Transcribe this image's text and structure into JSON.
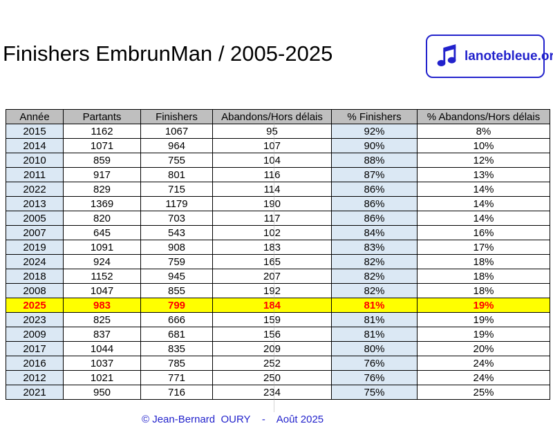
{
  "page": {
    "title": "Finishers EmbrunMan / 2005-2025",
    "footer_credit": "© Jean-Bernard  OURY    -    Août 2025"
  },
  "logo": {
    "icon": "music-note-icon",
    "text": "lanotebleue.org"
  },
  "colors": {
    "accent": "#2222CC",
    "header_bg": "#BFBFBF",
    "band_blue": "#DBE8F4",
    "highlight_bg": "#FFFF00",
    "highlight_text": "#FF0000",
    "border": "#000000",
    "page_bg": "#FFFFFF"
  },
  "table": {
    "columns": [
      "Année",
      "Partants",
      "Finishers",
      "Abandons/Hors délais",
      "% Finishers",
      "% Abandons/Hors délais"
    ],
    "rows": [
      {
        "annee": "2015",
        "partants": "1162",
        "finishers": "1067",
        "abandons": "95",
        "pct_finishers": "92%",
        "pct_abandons": "8%",
        "highlight": false
      },
      {
        "annee": "2014",
        "partants": "1071",
        "finishers": "964",
        "abandons": "107",
        "pct_finishers": "90%",
        "pct_abandons": "10%",
        "highlight": false
      },
      {
        "annee": "2010",
        "partants": "859",
        "finishers": "755",
        "abandons": "104",
        "pct_finishers": "88%",
        "pct_abandons": "12%",
        "highlight": false
      },
      {
        "annee": "2011",
        "partants": "917",
        "finishers": "801",
        "abandons": "116",
        "pct_finishers": "87%",
        "pct_abandons": "13%",
        "highlight": false
      },
      {
        "annee": "2022",
        "partants": "829",
        "finishers": "715",
        "abandons": "114",
        "pct_finishers": "86%",
        "pct_abandons": "14%",
        "highlight": false
      },
      {
        "annee": "2013",
        "partants": "1369",
        "finishers": "1179",
        "abandons": "190",
        "pct_finishers": "86%",
        "pct_abandons": "14%",
        "highlight": false
      },
      {
        "annee": "2005",
        "partants": "820",
        "finishers": "703",
        "abandons": "117",
        "pct_finishers": "86%",
        "pct_abandons": "14%",
        "highlight": false
      },
      {
        "annee": "2007",
        "partants": "645",
        "finishers": "543",
        "abandons": "102",
        "pct_finishers": "84%",
        "pct_abandons": "16%",
        "highlight": false
      },
      {
        "annee": "2019",
        "partants": "1091",
        "finishers": "908",
        "abandons": "183",
        "pct_finishers": "83%",
        "pct_abandons": "17%",
        "highlight": false
      },
      {
        "annee": "2024",
        "partants": "924",
        "finishers": "759",
        "abandons": "165",
        "pct_finishers": "82%",
        "pct_abandons": "18%",
        "highlight": false
      },
      {
        "annee": "2018",
        "partants": "1152",
        "finishers": "945",
        "abandons": "207",
        "pct_finishers": "82%",
        "pct_abandons": "18%",
        "highlight": false
      },
      {
        "annee": "2008",
        "partants": "1047",
        "finishers": "855",
        "abandons": "192",
        "pct_finishers": "82%",
        "pct_abandons": "18%",
        "highlight": false
      },
      {
        "annee": "2025",
        "partants": "983",
        "finishers": "799",
        "abandons": "184",
        "pct_finishers": "81%",
        "pct_abandons": "19%",
        "highlight": true
      },
      {
        "annee": "2023",
        "partants": "825",
        "finishers": "666",
        "abandons": "159",
        "pct_finishers": "81%",
        "pct_abandons": "19%",
        "highlight": false
      },
      {
        "annee": "2009",
        "partants": "837",
        "finishers": "681",
        "abandons": "156",
        "pct_finishers": "81%",
        "pct_abandons": "19%",
        "highlight": false
      },
      {
        "annee": "2017",
        "partants": "1044",
        "finishers": "835",
        "abandons": "209",
        "pct_finishers": "80%",
        "pct_abandons": "20%",
        "highlight": false
      },
      {
        "annee": "2016",
        "partants": "1037",
        "finishers": "785",
        "abandons": "252",
        "pct_finishers": "76%",
        "pct_abandons": "24%",
        "highlight": false
      },
      {
        "annee": "2012",
        "partants": "1021",
        "finishers": "771",
        "abandons": "250",
        "pct_finishers": "76%",
        "pct_abandons": "24%",
        "highlight": false
      },
      {
        "annee": "2021",
        "partants": "950",
        "finishers": "716",
        "abandons": "234",
        "pct_finishers": "75%",
        "pct_abandons": "25%",
        "highlight": false
      }
    ]
  }
}
